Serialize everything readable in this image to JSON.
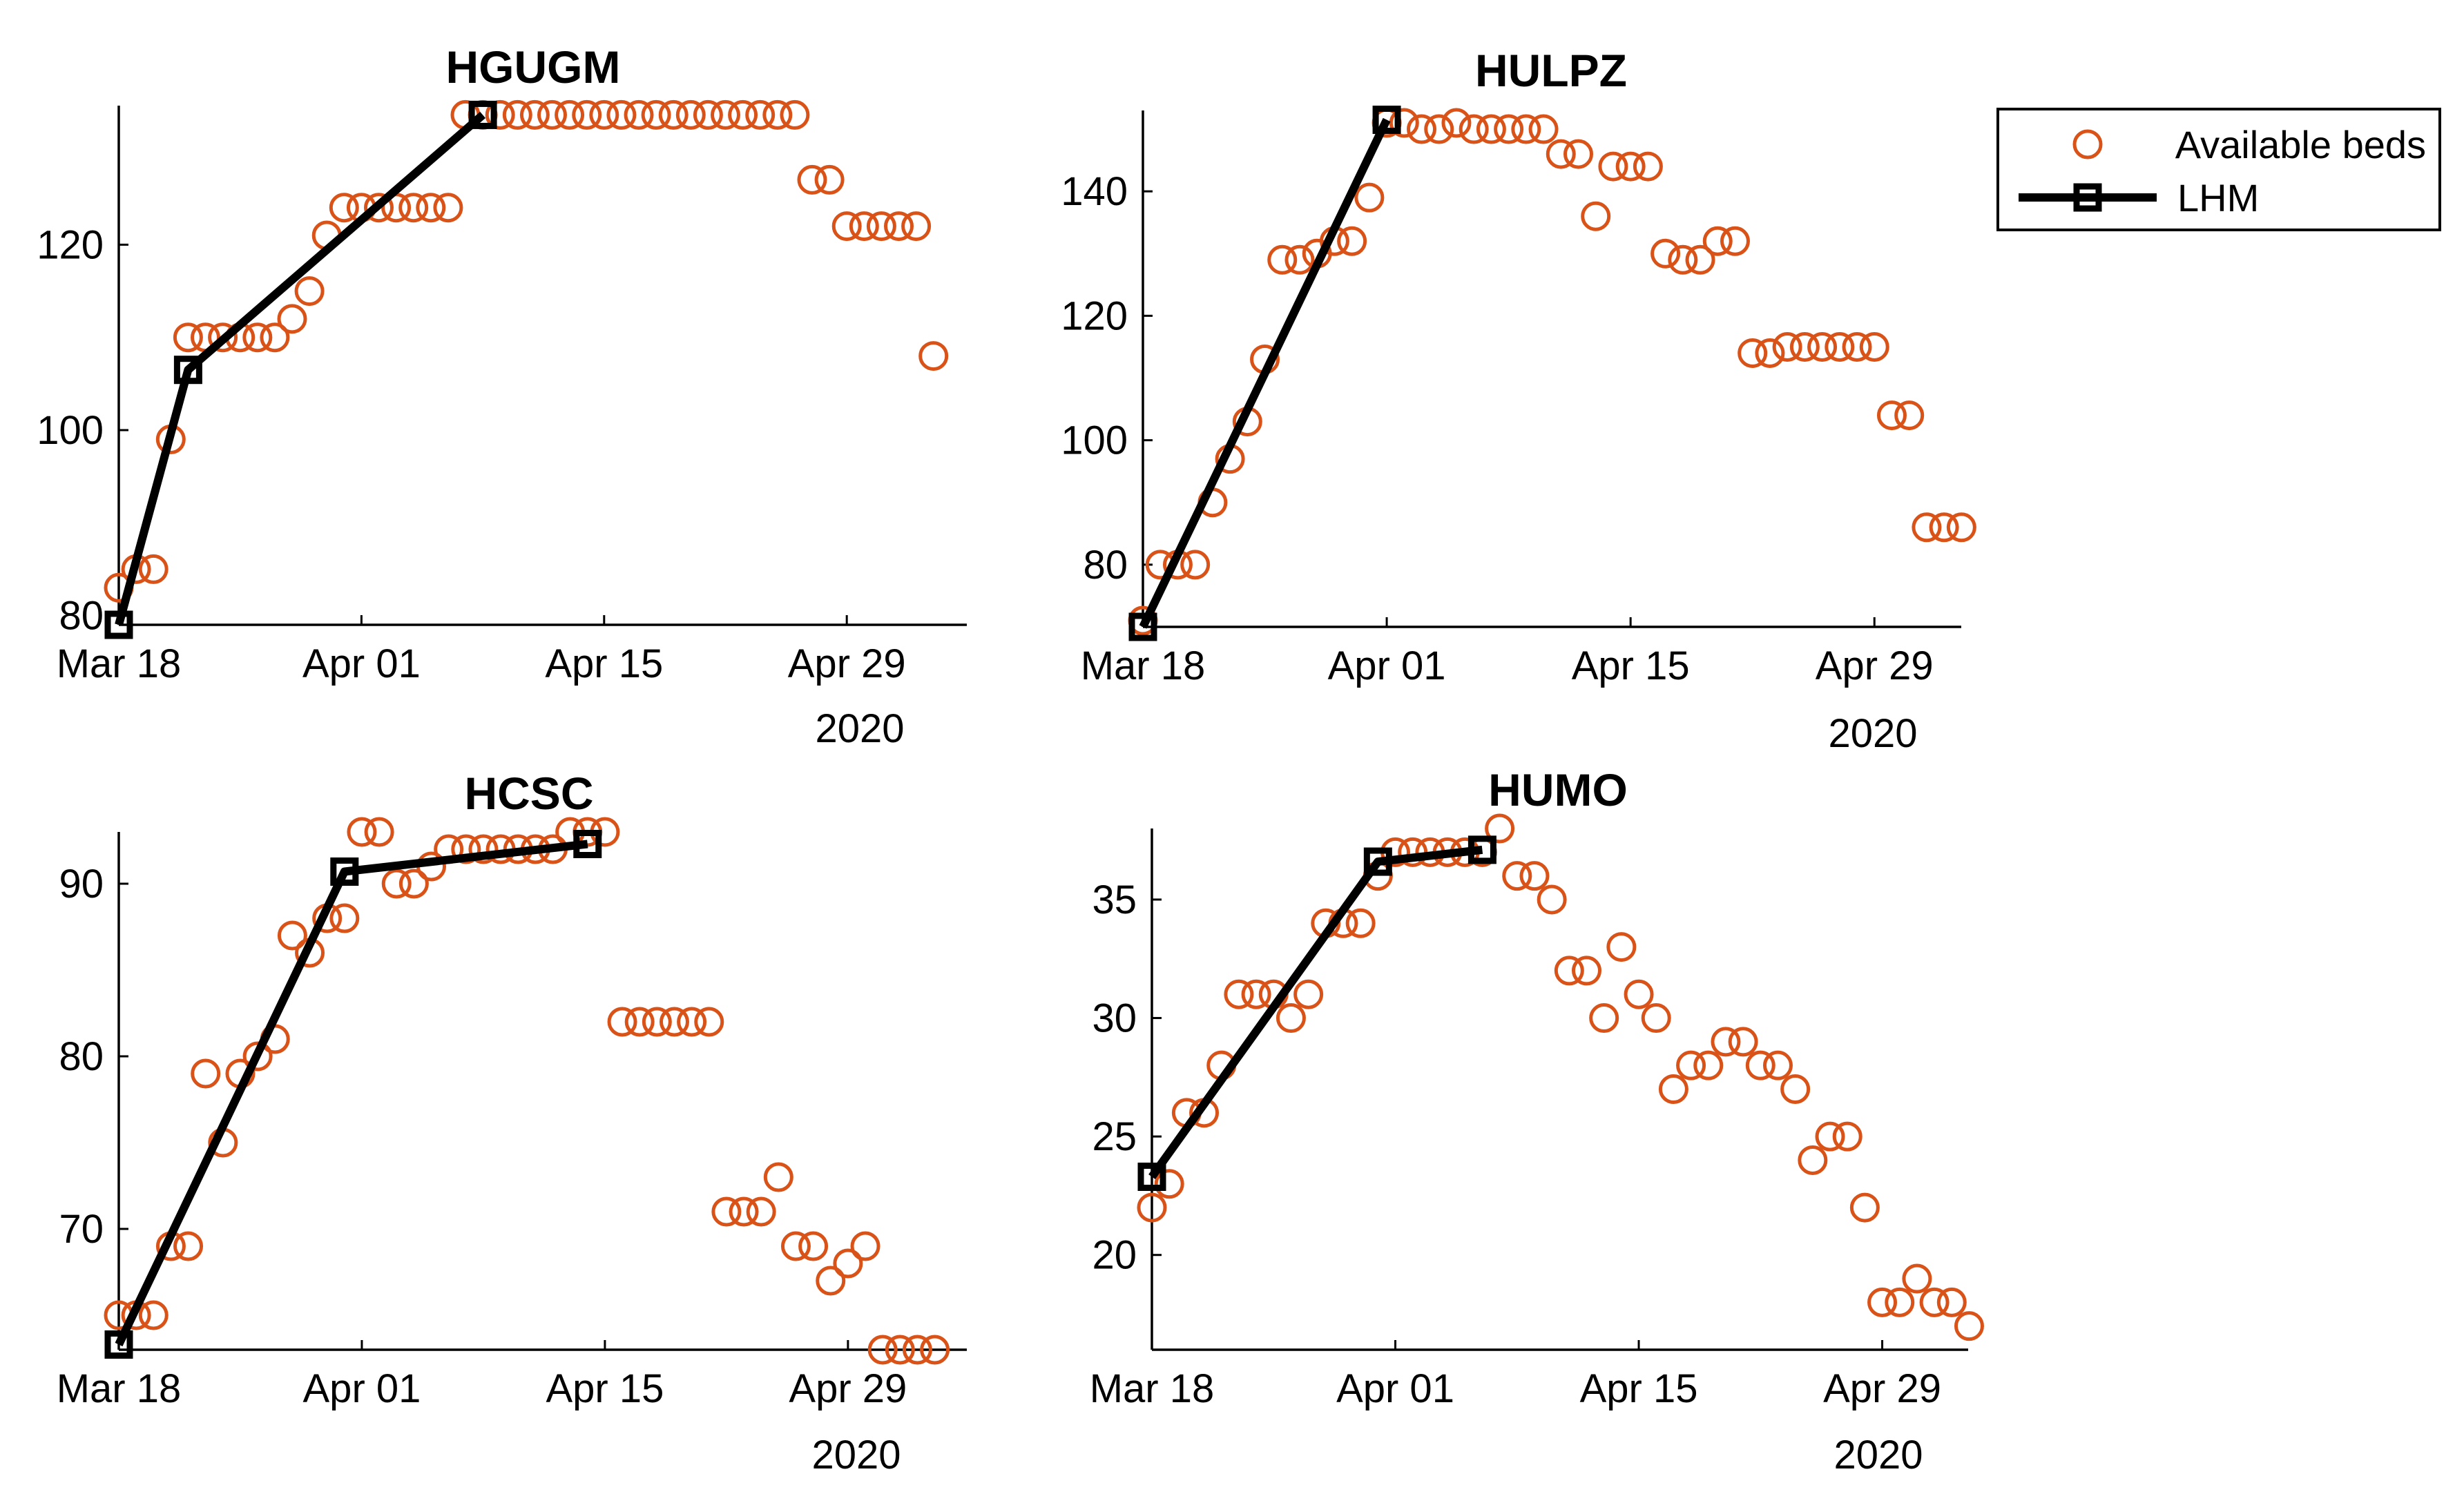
{
  "colors": {
    "beds": "#D95319",
    "lhm": "#000000",
    "axis": "#000000",
    "background": "#FFFFFF"
  },
  "legend": {
    "position": "top-right",
    "entries": [
      {
        "label": "Available beds",
        "marker": "circle",
        "color": "#D95319"
      },
      {
        "label": "LHM",
        "marker": "square-line",
        "color": "#000000"
      }
    ]
  },
  "chart_data": [
    {
      "type": "scatter",
      "title": "HGUGM",
      "xlabel": "",
      "ylabel": "",
      "xlim": [
        0,
        48
      ],
      "ylim": [
        79,
        135
      ],
      "xticks": [
        {
          "value": 0,
          "label": "Mar 18"
        },
        {
          "value": 14,
          "label": "Apr 01"
        },
        {
          "value": 28,
          "label": "Apr 15"
        },
        {
          "value": 42,
          "label": "Apr 29"
        }
      ],
      "yticks": [
        80,
        100,
        120
      ],
      "year_label": "2020",
      "series": [
        {
          "name": "Available beds",
          "x": [
            0,
            1,
            2,
            3,
            4,
            5,
            6,
            7,
            8,
            9,
            10,
            11,
            12,
            13,
            14,
            15,
            16,
            17,
            18,
            19,
            20,
            21,
            22,
            23,
            24,
            25,
            26,
            27,
            28,
            29,
            30,
            31,
            32,
            33,
            34,
            35,
            36,
            37,
            38,
            39,
            40,
            41,
            42,
            43,
            44,
            45,
            46,
            47
          ],
          "values": [
            83,
            85,
            85,
            99,
            110,
            110,
            110,
            110,
            110,
            110,
            112,
            115,
            121,
            124,
            124,
            124,
            124,
            124,
            124,
            124,
            134,
            134,
            134,
            134,
            134,
            134,
            134,
            134,
            134,
            134,
            134,
            134,
            134,
            134,
            134,
            134,
            134,
            134,
            134,
            134,
            127,
            127,
            122,
            122,
            122,
            122,
            122,
            108
          ]
        },
        {
          "name": "LHM",
          "x": [
            0,
            4,
            21
          ],
          "values": [
            79,
            106.5,
            134
          ]
        }
      ]
    },
    {
      "type": "scatter",
      "title": "HULPZ",
      "xlabel": "",
      "ylabel": "",
      "xlim": [
        0,
        47
      ],
      "ylim": [
        70,
        153
      ],
      "xticks": [
        {
          "value": 0,
          "label": "Mar 18"
        },
        {
          "value": 14,
          "label": "Apr 01"
        },
        {
          "value": 28,
          "label": "Apr 15"
        },
        {
          "value": 42,
          "label": "Apr 29"
        }
      ],
      "yticks": [
        80,
        100,
        120,
        140
      ],
      "year_label": "2020",
      "series": [
        {
          "name": "Available beds",
          "x": [
            0,
            1,
            2,
            3,
            4,
            5,
            6,
            7,
            8,
            9,
            10,
            11,
            12,
            13,
            14,
            15,
            16,
            17,
            18,
            19,
            20,
            21,
            22,
            23,
            24,
            25,
            26,
            27,
            28,
            29,
            30,
            31,
            32,
            33,
            34,
            35,
            36,
            37,
            38,
            39,
            40,
            41,
            42,
            43,
            44,
            45,
            46,
            47
          ],
          "values": [
            71,
            80,
            80,
            80,
            90,
            97,
            103,
            113,
            129,
            129,
            130,
            132,
            132,
            139,
            151,
            151,
            150,
            150,
            151,
            150,
            150,
            150,
            150,
            150,
            146,
            146,
            136,
            144,
            144,
            144,
            130,
            129,
            129,
            132,
            132,
            114,
            114,
            115,
            115,
            115,
            115,
            115,
            115,
            104,
            104,
            86,
            86,
            86
          ]
        },
        {
          "name": "LHM",
          "x": [
            0,
            14
          ],
          "values": [
            70,
            151.5
          ]
        }
      ]
    },
    {
      "type": "scatter",
      "title": "HCSC",
      "xlabel": "",
      "ylabel": "",
      "xlim": [
        0,
        48
      ],
      "ylim": [
        63,
        93
      ],
      "xticks": [
        {
          "value": 0,
          "label": "Mar 18"
        },
        {
          "value": 14,
          "label": "Apr 01"
        },
        {
          "value": 28,
          "label": "Apr 15"
        },
        {
          "value": 42,
          "label": "Apr 29"
        }
      ],
      "yticks": [
        70,
        80,
        90
      ],
      "year_label": "2020",
      "series": [
        {
          "name": "Available beds",
          "x": [
            0,
            1,
            2,
            3,
            4,
            5,
            6,
            7,
            8,
            9,
            10,
            11,
            12,
            13,
            14,
            15,
            16,
            17,
            18,
            19,
            20,
            21,
            22,
            23,
            24,
            25,
            26,
            27,
            28,
            29,
            30,
            31,
            32,
            33,
            34,
            35,
            36,
            37,
            38,
            39,
            40,
            41,
            42,
            43,
            44,
            45,
            46,
            47
          ],
          "values": [
            65,
            65,
            65,
            69,
            69,
            79,
            75,
            79,
            80,
            81,
            87,
            86,
            88,
            88,
            93,
            93,
            90,
            90,
            91,
            92,
            92,
            92,
            92,
            92,
            92,
            92,
            93,
            93,
            93,
            82,
            82,
            82,
            82,
            82,
            82,
            71,
            71,
            71,
            73,
            69,
            69,
            67,
            68,
            69,
            63,
            63,
            63,
            63
          ]
        },
        {
          "name": "LHM",
          "x": [
            0,
            13,
            27
          ],
          "values": [
            63.3,
            90.7,
            92.3
          ]
        }
      ]
    },
    {
      "type": "scatter",
      "title": "HUMO",
      "xlabel": "",
      "ylabel": "",
      "xlim": [
        0,
        47
      ],
      "ylim": [
        16,
        38
      ],
      "xticks": [
        {
          "value": 0,
          "label": "Mar 18"
        },
        {
          "value": 14,
          "label": "Apr 01"
        },
        {
          "value": 28,
          "label": "Apr 15"
        },
        {
          "value": 42,
          "label": "Apr 29"
        }
      ],
      "yticks": [
        20,
        25,
        30,
        35
      ],
      "year_label": "2020",
      "series": [
        {
          "name": "Available beds",
          "x": [
            0,
            1,
            2,
            3,
            4,
            5,
            6,
            7,
            8,
            9,
            10,
            11,
            12,
            13,
            14,
            15,
            16,
            17,
            18,
            19,
            20,
            21,
            22,
            23,
            24,
            25,
            26,
            27,
            28,
            29,
            30,
            31,
            32,
            33,
            34,
            35,
            36,
            37,
            38,
            39,
            40,
            41,
            42,
            43,
            44,
            45,
            46,
            47
          ],
          "values": [
            22,
            23,
            26,
            26,
            28,
            31,
            31,
            31,
            30,
            31,
            34,
            34,
            34,
            36,
            37,
            37,
            37,
            37,
            37,
            37,
            38,
            36,
            36,
            35,
            32,
            32,
            30,
            33,
            31,
            30,
            27,
            28,
            28,
            29,
            29,
            28,
            28,
            27,
            24,
            25,
            25,
            22,
            18,
            18,
            19,
            18,
            18,
            17
          ]
        },
        {
          "name": "LHM",
          "x": [
            0,
            13,
            19
          ],
          "values": [
            23.3,
            36.6,
            37.1
          ]
        }
      ]
    }
  ]
}
